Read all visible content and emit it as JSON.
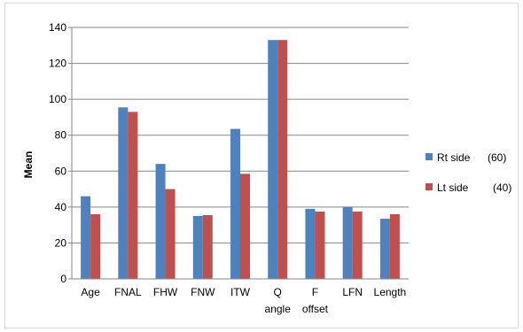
{
  "chart_data": {
    "type": "bar",
    "title": "",
    "xlabel": "",
    "ylabel": "Mean",
    "ylim": [
      0,
      140
    ],
    "yticks": [
      0,
      20,
      40,
      60,
      80,
      100,
      120,
      140
    ],
    "grid": true,
    "legend_position": "right",
    "categories": [
      [
        "Age"
      ],
      [
        "FNAL"
      ],
      [
        "FHW"
      ],
      [
        "FNW"
      ],
      [
        "ITW"
      ],
      [
        "Q",
        "angle"
      ],
      [
        "F",
        "offset"
      ],
      [
        "LFN"
      ],
      [
        "Length"
      ]
    ],
    "series": [
      {
        "name": "Rt side",
        "count_label": "(60)",
        "color": "#4f81bd",
        "values": [
          46,
          95.5,
          64,
          35,
          83.5,
          133,
          39,
          40,
          33.5
        ]
      },
      {
        "name": "Lt side",
        "count_label": "(40)",
        "color": "#c0504d",
        "values": [
          36,
          93,
          50,
          35.5,
          58.5,
          133,
          37.5,
          37.5,
          36
        ]
      }
    ]
  }
}
